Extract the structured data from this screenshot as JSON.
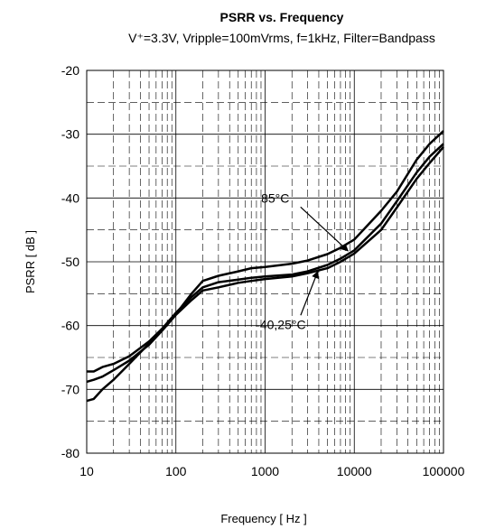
{
  "chart_data": {
    "type": "line",
    "title": "PSRR vs. Frequency",
    "subtitle": "V⁺=3.3V, Vripple=100mVrms, f=1kHz, Filter=Bandpass",
    "xlabel": "Frequency [ Hz ]",
    "ylabel": "PSRR [ dB ]",
    "xscale": "log",
    "xlim": [
      10,
      100000
    ],
    "ylim": [
      -80,
      -20
    ],
    "grid": true,
    "x_ticks": [
      "10",
      "100",
      "1000",
      "10000",
      "100000"
    ],
    "y_ticks": [
      "-20",
      "-30",
      "-40",
      "-50",
      "-60",
      "-70",
      "-80"
    ],
    "x_tick_values": [
      10,
      100,
      1000,
      10000,
      100000
    ],
    "y_tick_values": [
      -20,
      -30,
      -40,
      -50,
      -60,
      -70,
      -80
    ],
    "line_color": "#000000",
    "series": [
      {
        "x": [
          10,
          12,
          15,
          20,
          30,
          50,
          70,
          100,
          150,
          200,
          300,
          500,
          700,
          1000,
          2000,
          3000,
          5000,
          7000,
          10000,
          20000,
          30000,
          50000,
          70000,
          100000
        ],
        "y": [
          -67.2,
          -67.2,
          -66.5,
          -66.0,
          -64.8,
          -62.5,
          -60.5,
          -58.0,
          -55.5,
          -54.0,
          -53.2,
          -52.8,
          -52.5,
          -52.3,
          -52.0,
          -51.5,
          -50.5,
          -49.5,
          -48.2,
          -44.0,
          -40.5,
          -36.0,
          -33.5,
          -31.5
        ]
      },
      {
        "x": [
          10,
          12,
          15,
          20,
          30,
          50,
          70,
          100,
          150,
          200,
          300,
          500,
          700,
          1000,
          2000,
          3000,
          5000,
          7000,
          10000,
          20000,
          30000,
          50000,
          70000,
          100000
        ],
        "y": [
          -68.8,
          -68.5,
          -68.0,
          -67.0,
          -65.5,
          -63.0,
          -60.8,
          -58.3,
          -56.0,
          -54.5,
          -54.0,
          -53.3,
          -53.0,
          -52.7,
          -52.3,
          -51.8,
          -51.0,
          -50.0,
          -48.7,
          -45.0,
          -41.5,
          -37.0,
          -34.5,
          -32.0
        ]
      },
      {
        "x": [
          10,
          12,
          15,
          20,
          30,
          50,
          70,
          100,
          150,
          200,
          300,
          500,
          700,
          1000,
          2000,
          3000,
          5000,
          7000,
          10000,
          20000,
          30000,
          50000,
          70000,
          100000
        ],
        "y": [
          -71.8,
          -71.5,
          -70.0,
          -68.5,
          -66.0,
          -62.8,
          -60.5,
          -58.2,
          -55.0,
          -53.0,
          -52.2,
          -51.5,
          -51.0,
          -50.8,
          -50.3,
          -49.8,
          -48.8,
          -47.8,
          -46.5,
          -42.0,
          -39.0,
          -34.0,
          -31.5,
          -29.5
        ]
      }
    ],
    "annotations": [
      {
        "text": "85°C",
        "x": 1300,
        "y": -40
      },
      {
        "text": "-40,25°C",
        "x": 1500,
        "y": -59.8
      }
    ]
  }
}
